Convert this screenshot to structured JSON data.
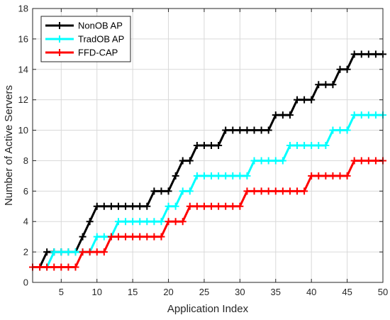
{
  "chart_data": {
    "type": "line",
    "title": "",
    "xlabel": "Application Index",
    "ylabel": "Number of Active Servers",
    "xlim": [
      1,
      50
    ],
    "ylim": [
      0,
      18
    ],
    "xticks": [
      5,
      10,
      15,
      20,
      25,
      30,
      35,
      40,
      45,
      50
    ],
    "yticks": [
      0,
      2,
      4,
      6,
      8,
      10,
      12,
      14,
      16,
      18
    ],
    "grid": true,
    "legend_position": "top-left",
    "x": [
      1,
      2,
      3,
      4,
      5,
      6,
      7,
      8,
      9,
      10,
      11,
      12,
      13,
      14,
      15,
      16,
      17,
      18,
      19,
      20,
      21,
      22,
      23,
      24,
      25,
      26,
      27,
      28,
      29,
      30,
      31,
      32,
      33,
      34,
      35,
      36,
      37,
      38,
      39,
      40,
      41,
      42,
      43,
      44,
      45,
      46,
      47,
      48,
      49,
      50
    ],
    "series": [
      {
        "name": "NonOB AP",
        "color": "#000000",
        "values": [
          1,
          1,
          2,
          2,
          2,
          2,
          2,
          3,
          4,
          5,
          5,
          5,
          5,
          5,
          5,
          5,
          5,
          6,
          6,
          6,
          7,
          8,
          8,
          9,
          9,
          9,
          9,
          10,
          10,
          10,
          10,
          10,
          10,
          10,
          11,
          11,
          11,
          12,
          12,
          12,
          13,
          13,
          13,
          14,
          14,
          15,
          15,
          15,
          15,
          15
        ]
      },
      {
        "name": "TradOB AP",
        "color": "#00ffff",
        "values": [
          1,
          1,
          1,
          2,
          2,
          2,
          2,
          2,
          2,
          3,
          3,
          3,
          4,
          4,
          4,
          4,
          4,
          4,
          4,
          5,
          5,
          6,
          6,
          7,
          7,
          7,
          7,
          7,
          7,
          7,
          7,
          8,
          8,
          8,
          8,
          8,
          9,
          9,
          9,
          9,
          9,
          9,
          10,
          10,
          10,
          11,
          11,
          11,
          11,
          11
        ]
      },
      {
        "name": "FFD-CAP",
        "color": "#ff0000",
        "values": [
          1,
          1,
          1,
          1,
          1,
          1,
          1,
          2,
          2,
          2,
          2,
          3,
          3,
          3,
          3,
          3,
          3,
          3,
          3,
          4,
          4,
          4,
          5,
          5,
          5,
          5,
          5,
          5,
          5,
          5,
          6,
          6,
          6,
          6,
          6,
          6,
          6,
          6,
          6,
          7,
          7,
          7,
          7,
          7,
          7,
          8,
          8,
          8,
          8,
          8
        ]
      }
    ]
  }
}
